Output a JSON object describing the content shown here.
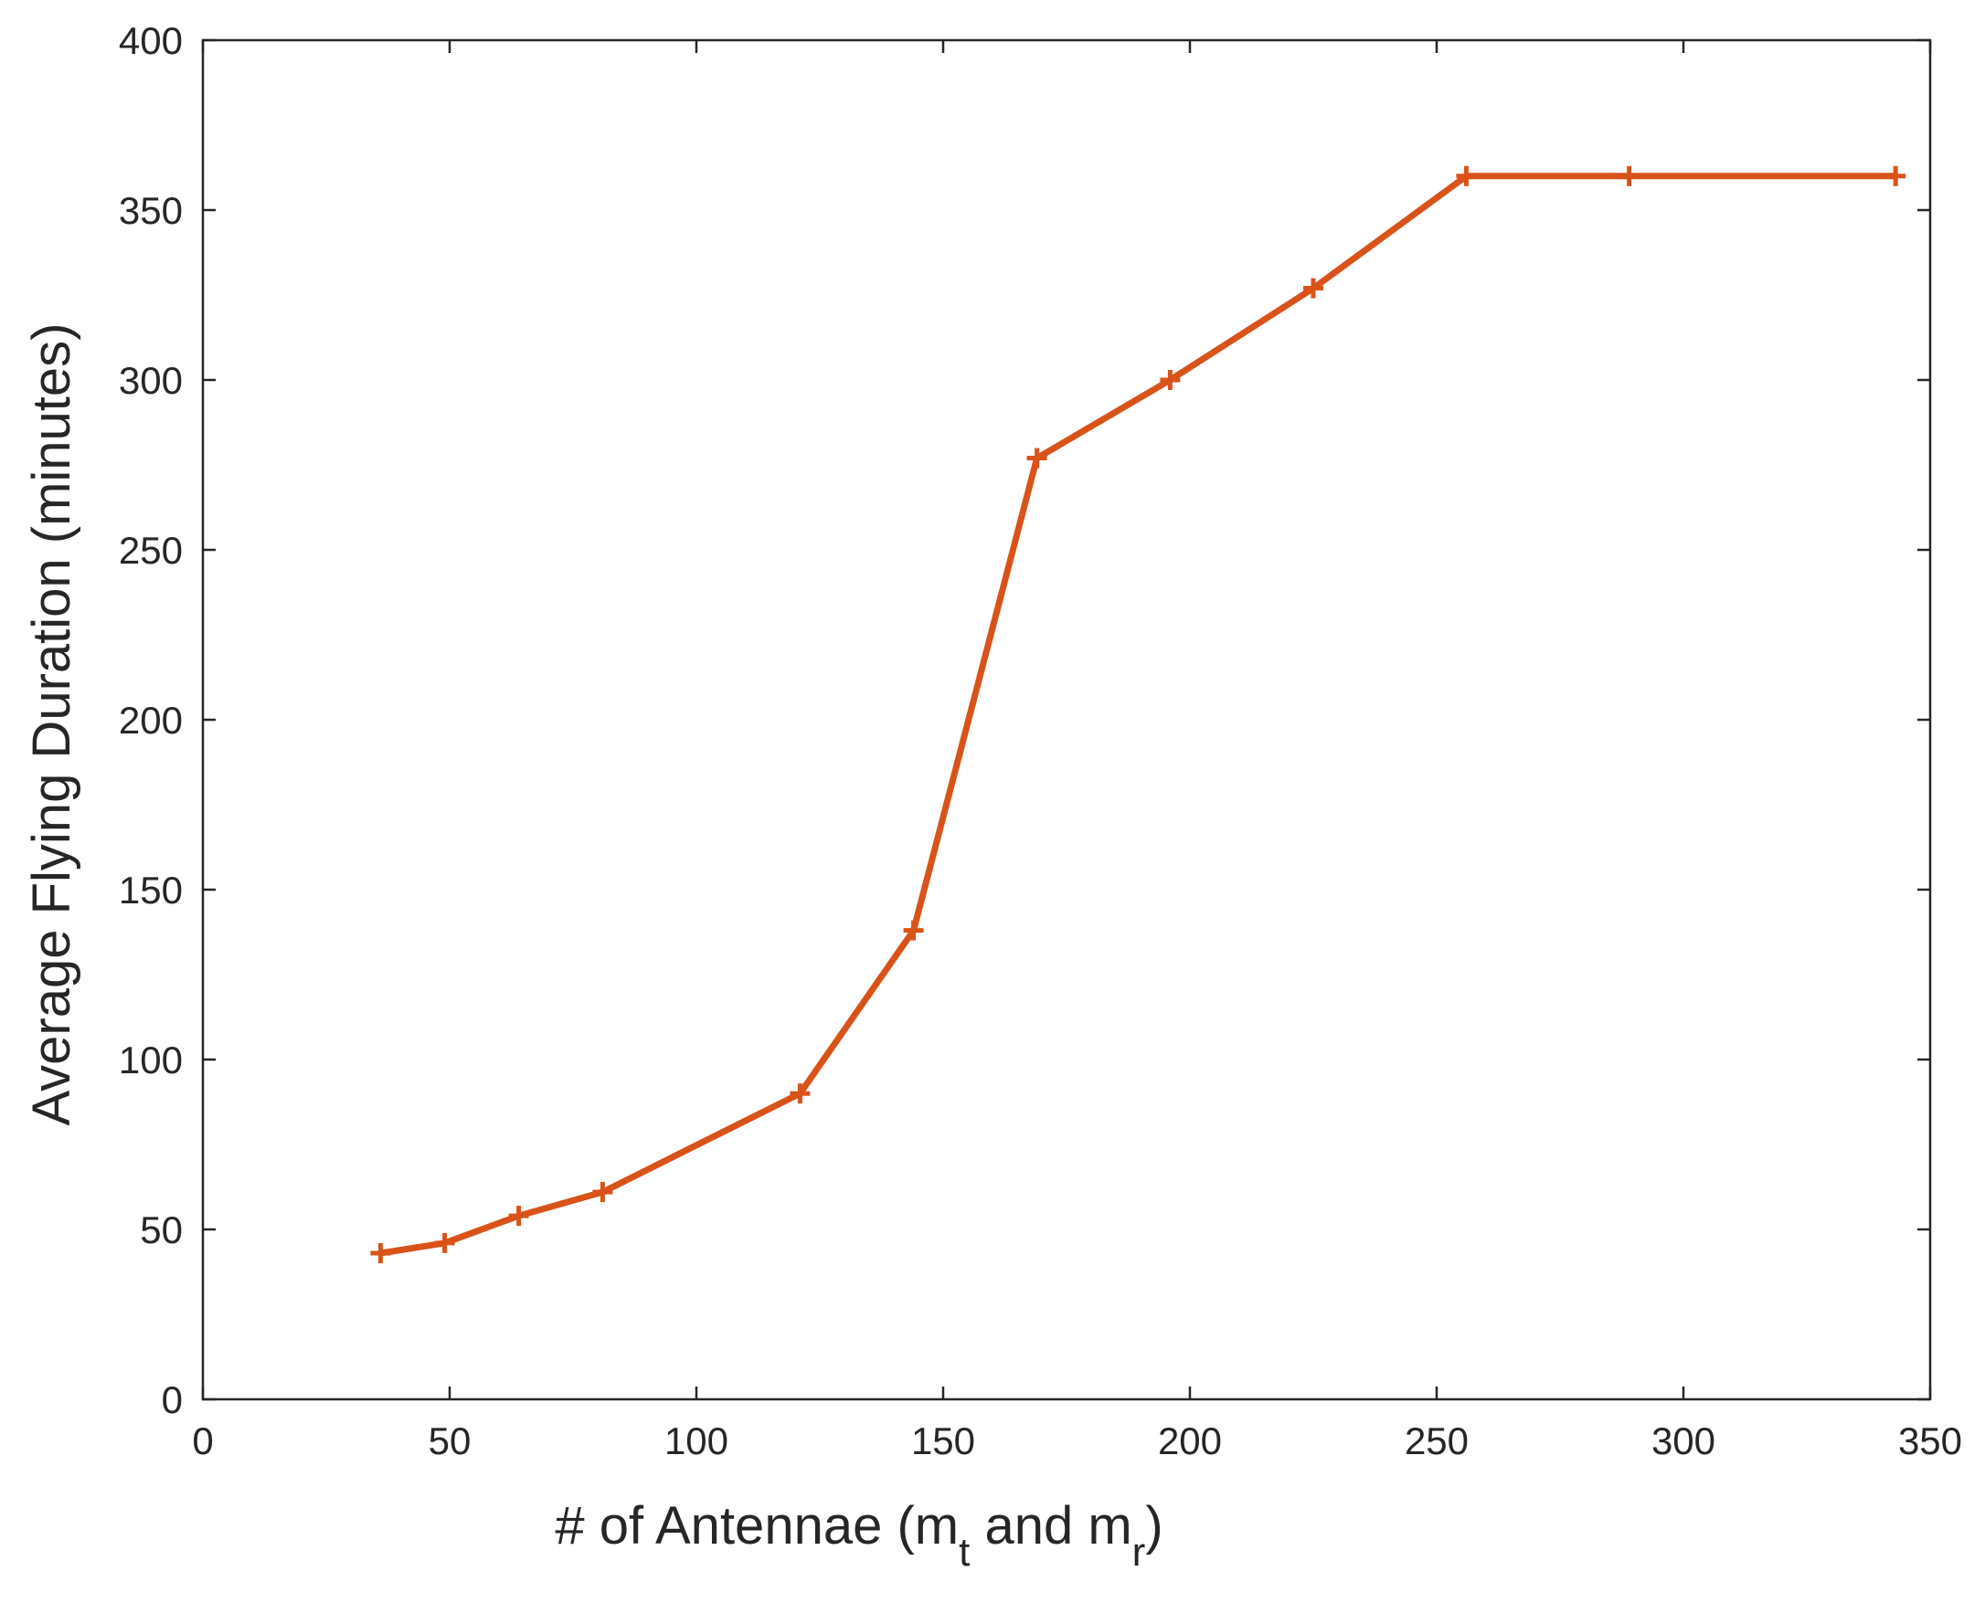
{
  "chart_data": {
    "type": "line",
    "title": "",
    "xlabel": {
      "prefix": "# of Antennae (m",
      "sub1": "t",
      "middle": " and m",
      "sub2": "r",
      "suffix": ")"
    },
    "ylabel": "Average Flying Duration (minutes)",
    "xlim": [
      0,
      350
    ],
    "ylim": [
      0,
      400
    ],
    "xticks": [
      0,
      50,
      100,
      150,
      200,
      250,
      300,
      350
    ],
    "yticks": [
      0,
      50,
      100,
      150,
      200,
      250,
      300,
      350,
      400
    ],
    "grid": false,
    "series": [
      {
        "color": "#D95319",
        "marker": "plus",
        "x": [
          36,
          49,
          64,
          81,
          121,
          144,
          169,
          196,
          225,
          256,
          289,
          343
        ],
        "y": [
          43,
          46,
          54,
          61,
          90,
          138,
          277,
          300,
          327,
          360,
          360,
          360
        ]
      }
    ]
  }
}
